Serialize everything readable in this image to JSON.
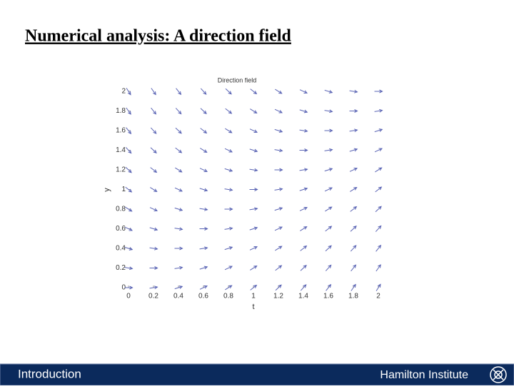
{
  "slide": {
    "title": "Numerical analysis: A direction field",
    "footer_left": "Introduction",
    "footer_right": "Hamilton Institute"
  },
  "chart_data": {
    "type": "quiver",
    "title": "Direction field",
    "x_label": "t",
    "y_label": "y",
    "color": "#5a64b4",
    "x": [
      0,
      0.2,
      0.4,
      0.6,
      0.8,
      1,
      1.2,
      1.4,
      1.6,
      1.8,
      2
    ],
    "y": [
      0,
      0.2,
      0.4,
      0.6,
      0.8,
      1,
      1.2,
      1.4,
      1.6,
      1.8,
      2
    ],
    "slopes": [
      [
        0,
        0.2,
        0.4,
        0.6,
        0.8,
        1,
        1.2,
        1.4,
        1.6,
        1.8,
        2
      ],
      [
        -0.2,
        0,
        0.2,
        0.4,
        0.6,
        0.8,
        1,
        1.2,
        1.4,
        1.6,
        1.8
      ],
      [
        -0.4,
        -0.2,
        0,
        0.2,
        0.4,
        0.6,
        0.8,
        1,
        1.2,
        1.4,
        1.6
      ],
      [
        -0.6,
        -0.4,
        -0.2,
        0,
        0.2,
        0.4,
        0.6,
        0.8,
        1,
        1.2,
        1.4
      ],
      [
        -0.8,
        -0.6,
        -0.4,
        -0.2,
        0,
        0.2,
        0.4,
        0.6,
        0.8,
        1,
        1.2
      ],
      [
        -1,
        -0.8,
        -0.6,
        -0.4,
        -0.2,
        0,
        0.2,
        0.4,
        0.6,
        0.8,
        1
      ],
      [
        -1.2,
        -1,
        -0.8,
        -0.6,
        -0.4,
        -0.2,
        0,
        0.2,
        0.4,
        0.6,
        0.8
      ],
      [
        -1.4,
        -1.2,
        -1,
        -0.8,
        -0.6,
        -0.4,
        -0.2,
        0,
        0.2,
        0.4,
        0.6
      ],
      [
        -1.6,
        -1.4,
        -1.2,
        -1,
        -0.8,
        -0.6,
        -0.4,
        -0.2,
        0,
        0.2,
        0.4
      ],
      [
        -1.8,
        -1.6,
        -1.4,
        -1.2,
        -1,
        -0.8,
        -0.6,
        -0.4,
        -0.2,
        0,
        0.2
      ],
      [
        -2,
        -1.8,
        -1.6,
        -1.4,
        -1.2,
        -1,
        -0.8,
        -0.6,
        -0.4,
        -0.2,
        0
      ]
    ],
    "xlim": [
      0,
      2
    ],
    "ylim": [
      0,
      2
    ],
    "xticks": [
      0,
      0.2,
      0.4,
      0.6,
      0.8,
      1,
      1.2,
      1.4,
      1.6,
      1.8,
      2
    ],
    "yticks": [
      0,
      0.2,
      0.4,
      0.6,
      0.8,
      1,
      1.2,
      1.4,
      1.6,
      1.8,
      2
    ]
  }
}
